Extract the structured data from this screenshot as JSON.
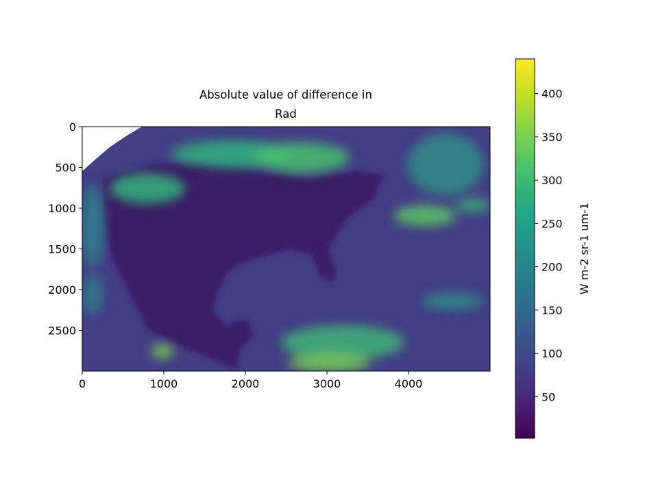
{
  "chart_data": {
    "type": "heatmap",
    "title": [
      "Absolute value of difference in",
      "Rad"
    ],
    "xlabel": "",
    "ylabel": "",
    "xlim": [
      0,
      5000
    ],
    "ylim": [
      3000,
      0
    ],
    "x_ticks": [
      0,
      1000,
      2000,
      3000,
      4000
    ],
    "y_ticks": [
      0,
      500,
      1000,
      1500,
      2000,
      2500
    ],
    "colormap": "viridis",
    "colorbar": {
      "label": "W m-2 sr-1 um-1",
      "range": [
        2,
        440
      ],
      "ticks": [
        50,
        100,
        150,
        200,
        250,
        300,
        350,
        400
      ]
    },
    "image_description_values": {
      "background_level": 70,
      "land_level": 35,
      "cloud_level_typical": 250,
      "cloud_level_max": 330
    }
  }
}
